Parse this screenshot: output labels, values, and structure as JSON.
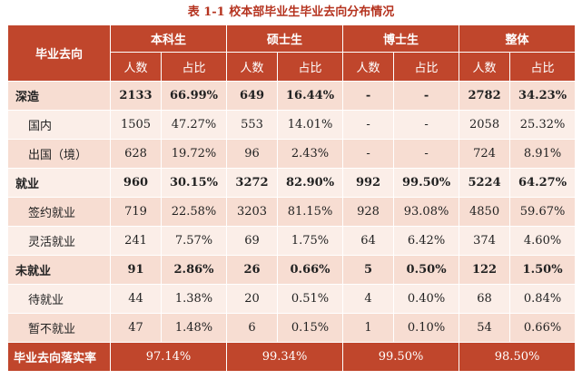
{
  "caption": "表 1-1 校本部毕业生毕业去向分布情况",
  "header": {
    "row_label": "毕业去向",
    "groups": [
      "本科生",
      "硕士生",
      "博士生",
      "整体"
    ],
    "count_label": "人数",
    "ratio_label": "占比"
  },
  "rows": [
    {
      "label": "深造",
      "values": [
        "2133",
        "66.99%",
        "649",
        "16.44%",
        "-",
        "-",
        "2782",
        "34.23%"
      ]
    },
    {
      "label": "国内",
      "values": [
        "1505",
        "47.27%",
        "553",
        "14.01%",
        "-",
        "-",
        "2058",
        "25.32%"
      ]
    },
    {
      "label": "出国（境）",
      "values": [
        "628",
        "19.72%",
        "96",
        "2.43%",
        "-",
        "-",
        "724",
        "8.91%"
      ]
    },
    {
      "label": "就业",
      "values": [
        "960",
        "30.15%",
        "3272",
        "82.90%",
        "992",
        "99.50%",
        "5224",
        "64.27%"
      ]
    },
    {
      "label": "签约就业",
      "values": [
        "719",
        "22.58%",
        "3203",
        "81.15%",
        "928",
        "93.08%",
        "4850",
        "59.67%"
      ]
    },
    {
      "label": "灵活就业",
      "values": [
        "241",
        "7.57%",
        "69",
        "1.75%",
        "64",
        "6.42%",
        "374",
        "4.60%"
      ]
    },
    {
      "label": "未就业",
      "values": [
        "91",
        "2.86%",
        "26",
        "0.66%",
        "5",
        "0.50%",
        "122",
        "1.50%"
      ]
    },
    {
      "label": "待就业",
      "values": [
        "44",
        "1.38%",
        "20",
        "0.51%",
        "4",
        "0.40%",
        "68",
        "0.84%"
      ]
    },
    {
      "label": "暂不就业",
      "values": [
        "47",
        "1.48%",
        "6",
        "0.15%",
        "1",
        "0.10%",
        "54",
        "0.66%"
      ]
    }
  ],
  "footer": {
    "label": "毕业去向落实率",
    "values": [
      "97.14%",
      "99.34%",
      "99.50%",
      "98.50%"
    ]
  },
  "colors": {
    "header": "#c0462c",
    "caption": "#b5331f",
    "row_dark": "#f7ddd2",
    "row_light": "#fbeee8"
  }
}
